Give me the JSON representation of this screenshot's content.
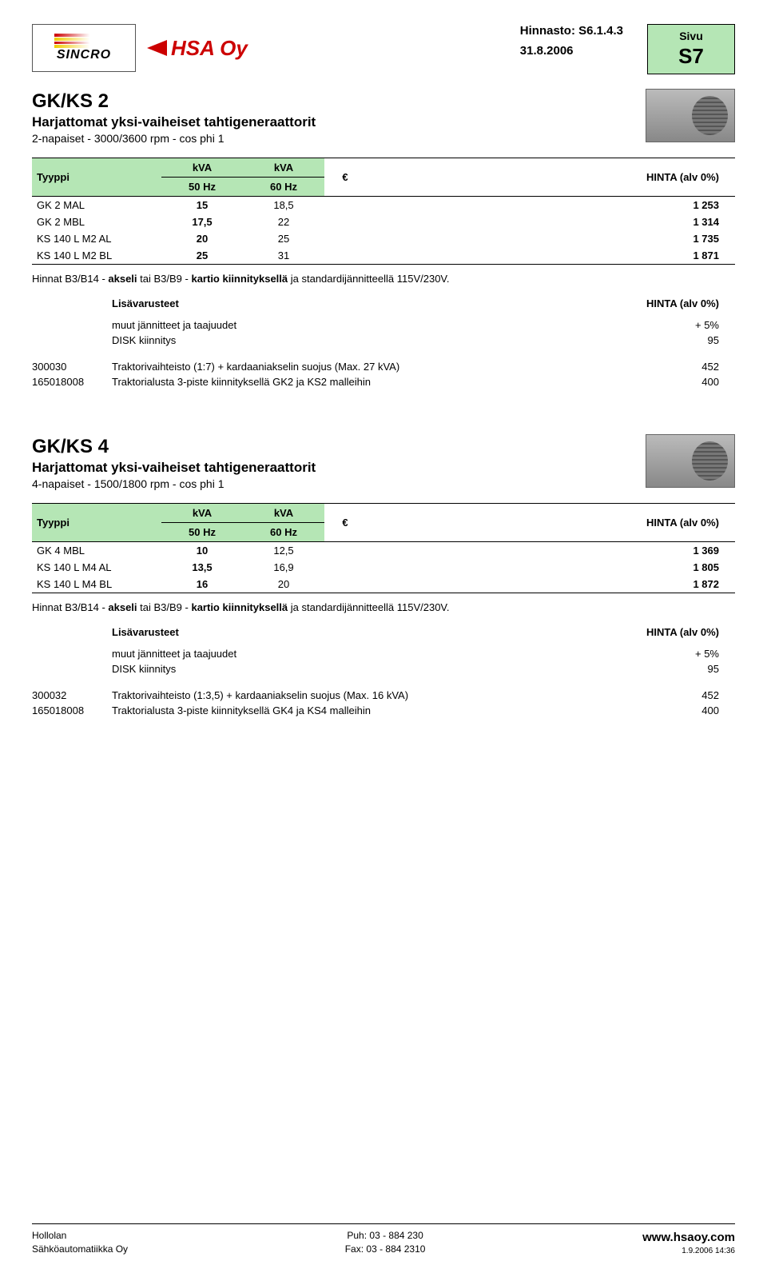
{
  "header": {
    "hinnasto_label": "Hinnasto: S6.1.4.3",
    "date": "31.8.2006",
    "sivu_label": "Sivu",
    "page_code": "S7",
    "sincro_text": "SINCRO",
    "hsa_text": "HSA Oy"
  },
  "section1": {
    "title": "GK/KS 2",
    "subtitle1": "Harjattomat yksi-vaiheiset tahtigeneraattorit",
    "subtitle2": "2-napaiset - 3000/3600 rpm - cos phi 1",
    "table": {
      "head": {
        "tyyppi": "Tyyppi",
        "kva_top": "kVA",
        "c50": "50 Hz",
        "c60": "60 Hz",
        "euro": "€",
        "hinta": "HINTA (alv 0%)"
      },
      "rows": [
        {
          "type": "GK 2 MAL",
          "v50": "15",
          "v60": "18,5",
          "price": "1 253"
        },
        {
          "type": "GK 2 MBL",
          "v50": "17,5",
          "v60": "22",
          "price": "1 314"
        },
        {
          "type": "KS 140 L M2 AL",
          "v50": "20",
          "v60": "25",
          "price": "1 735"
        },
        {
          "type": "KS 140 L M2 BL",
          "v50": "25",
          "v60": "31",
          "price": "1 871"
        }
      ]
    },
    "note_pre": "Hinnat B3/B14 - ",
    "note_b1": "akseli",
    "note_mid": " tai B3/B9 - ",
    "note_b2": "kartio kiinnityksellä",
    "note_post": " ja standardijännitteellä 115V/230V.",
    "acc_header_l": "Lisävarusteet",
    "acc_header_r": "HINTA (alv 0%)",
    "acc_lines": [
      {
        "code": "",
        "desc": "muut jännitteet ja taajuudet",
        "val": "+ 5%"
      },
      {
        "code": "",
        "desc": "DISK kiinnitys",
        "val": "95"
      },
      {
        "code": "300030",
        "desc": "Traktorivaihteisto (1:7) + kardaaniakselin suojus (Max. 27 kVA)",
        "val": "452"
      },
      {
        "code": "165018008",
        "desc": "Traktorialusta 3-piste kiinnityksellä GK2 ja KS2 malleihin",
        "val": "400"
      }
    ]
  },
  "section2": {
    "title": "GK/KS 4",
    "subtitle1": "Harjattomat yksi-vaiheiset tahtigeneraattorit",
    "subtitle2": "4-napaiset - 1500/1800 rpm - cos phi 1",
    "table": {
      "rows": [
        {
          "type": "GK 4 MBL",
          "v50": "10",
          "v60": "12,5",
          "price": "1 369"
        },
        {
          "type": "KS 140 L M4 AL",
          "v50": "13,5",
          "v60": "16,9",
          "price": "1 805"
        },
        {
          "type": "KS 140 L M4 BL",
          "v50": "16",
          "v60": "20",
          "price": "1 872"
        }
      ]
    },
    "acc_lines": [
      {
        "code": "",
        "desc": "muut jännitteet ja taajuudet",
        "val": "+ 5%"
      },
      {
        "code": "",
        "desc": "DISK kiinnitys",
        "val": "95"
      },
      {
        "code": "300032",
        "desc": "Traktorivaihteisto (1:3,5) + kardaaniakselin suojus (Max. 16 kVA)",
        "val": "452"
      },
      {
        "code": "165018008",
        "desc": "Traktorialusta 3-piste kiinnityksellä GK4 ja KS4 malleihin",
        "val": "400"
      }
    ]
  },
  "footer": {
    "l1": "Hollolan",
    "l2": "Sähköautomatiikka Oy",
    "c1": "Puh: 03 - 884 230",
    "c2": "Fax: 03 - 884 2310",
    "url": "www.hsaoy.com",
    "ts": "1.9.2006 14:36"
  }
}
